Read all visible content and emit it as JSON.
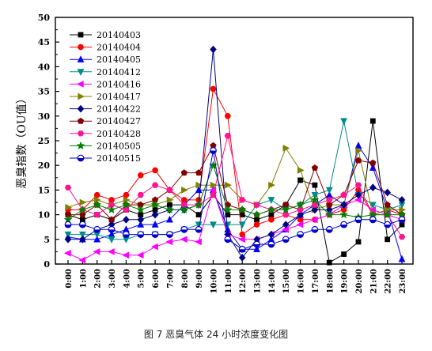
{
  "caption": "图 7 恶臭气体 24 小时浓度变化图",
  "chart_data": {
    "type": "line",
    "title": "",
    "xlabel": "",
    "ylabel": "恶臭指数（OU值）",
    "ylim": [
      0,
      50
    ],
    "yticks": [
      0,
      5,
      10,
      15,
      20,
      25,
      30,
      35,
      40,
      45,
      50
    ],
    "grid": false,
    "legend_position": "top-left",
    "categories": [
      "0:00",
      "1:00",
      "2:00",
      "3:00",
      "4:00",
      "5:00",
      "6:00",
      "7:00",
      "8:00",
      "9:00",
      "10:00",
      "11:00",
      "12:00",
      "13:00",
      "14:00",
      "15:00",
      "16:00",
      "17:00",
      "18:00",
      "19:00",
      "20:00",
      "21:00",
      "22:00",
      "23:00"
    ],
    "series": [
      {
        "name": "20140403",
        "color": "#000000",
        "marker": "square",
        "values": [
          10,
          9,
          10,
          9,
          11,
          10,
          11,
          12,
          12,
          10,
          14,
          10,
          10,
          9,
          10,
          12,
          17,
          16,
          0.3,
          2,
          4.5,
          29,
          5,
          8
        ]
      },
      {
        "name": "20140404",
        "color": "#ff0000",
        "marker": "circle",
        "values": [
          11,
          11,
          14,
          13,
          14,
          18,
          19,
          15,
          13,
          13,
          35.5,
          30,
          6,
          8,
          9,
          10,
          9,
          9,
          10,
          11,
          15,
          10,
          11,
          10
        ]
      },
      {
        "name": "20140405",
        "color": "#0000ff",
        "marker": "triangle-up",
        "values": [
          5.5,
          5,
          5,
          6,
          7,
          8,
          8,
          9,
          12,
          15,
          15,
          7,
          3,
          3,
          5,
          7,
          10,
          12,
          14,
          12,
          24,
          19.5,
          11,
          1
        ]
      },
      {
        "name": "20140412",
        "color": "#008b8b",
        "marker": "triangle-down",
        "values": [
          6,
          6,
          6,
          5,
          5,
          6,
          6,
          6,
          7,
          8,
          8,
          8,
          8,
          12,
          13,
          11,
          12,
          14,
          15,
          29,
          14,
          12,
          11,
          12
        ]
      },
      {
        "name": "20140416",
        "color": "#ff00ff",
        "marker": "triangle-left",
        "values": [
          2.2,
          0.8,
          2.5,
          2.5,
          1.8,
          1.8,
          3.5,
          4.5,
          5,
          4.5,
          15,
          6,
          5,
          5,
          6,
          7,
          8,
          9,
          10,
          12,
          13,
          11,
          10,
          9
        ]
      },
      {
        "name": "20140417",
        "color": "#808000",
        "marker": "triangle-right",
        "values": [
          11.5,
          12.5,
          13,
          12,
          13,
          12,
          12,
          13,
          15,
          16,
          16,
          16,
          13,
          12,
          16,
          23.5,
          19,
          11,
          12,
          12,
          23,
          10,
          11,
          11
        ]
      },
      {
        "name": "20140422",
        "color": "#000080",
        "marker": "diamond",
        "values": [
          5,
          5,
          7,
          8,
          9,
          9,
          10,
          11,
          11,
          12,
          43.5,
          6,
          1.3,
          5,
          6,
          8,
          10,
          11,
          11,
          12,
          14,
          15.5,
          14.5,
          13
        ]
      },
      {
        "name": "20140427",
        "color": "#800000",
        "marker": "pentagon",
        "values": [
          10,
          10,
          12,
          9,
          12,
          12,
          13,
          15,
          18.5,
          18.5,
          24,
          12,
          11,
          10,
          11,
          12,
          11,
          19.5,
          12,
          14,
          21,
          20.5,
          12,
          10
        ]
      },
      {
        "name": "20140428",
        "color": "#ff1493",
        "marker": "hexagon",
        "values": [
          15.5,
          11,
          10,
          12,
          11,
          14,
          16,
          15,
          12,
          12,
          14,
          26,
          13,
          12,
          11,
          10,
          11,
          12,
          13,
          14,
          16,
          10,
          10,
          5.5
        ]
      },
      {
        "name": "20140505",
        "color": "#008000",
        "marker": "star",
        "values": [
          9,
          11,
          12,
          11,
          12,
          11,
          12,
          11,
          11,
          12,
          20,
          11,
          11,
          10,
          11,
          11,
          12,
          13,
          10,
          10,
          9.5,
          10,
          10,
          10
        ]
      },
      {
        "name": "20140515",
        "color": "#0000cd",
        "marker": "circle-half",
        "values": [
          8,
          8,
          7,
          7,
          6,
          6,
          6,
          6,
          7,
          7,
          23,
          5,
          3,
          4,
          4,
          5,
          6,
          7,
          7,
          8,
          9,
          9,
          8,
          9
        ]
      }
    ]
  }
}
